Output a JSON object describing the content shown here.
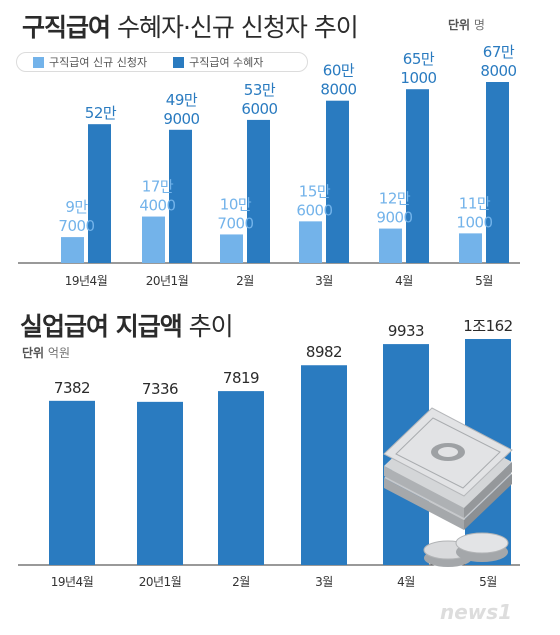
{
  "title1": {
    "bold": "구직급여",
    "rest": " 수혜자·신규 신청자 추이"
  },
  "unit1": {
    "label": "단위",
    "value": "명"
  },
  "legend": {
    "new": "구직급여 신규 신청자",
    "recipients": "구직급여 수혜자"
  },
  "title2": {
    "bold": "실업급여 지급액",
    "rest": " 추이"
  },
  "unit2": {
    "label": "단위",
    "value": "억원"
  },
  "watermark": "news1",
  "colors": {
    "light": "#73b3ea",
    "dark": "#2a7bc0",
    "label": "#2a7bc0",
    "axis": "#333333"
  },
  "chart_data": [
    {
      "type": "bar",
      "title": "구직급여 수혜자·신규 신청자 추이",
      "unit": "명",
      "categories": [
        "19년4월",
        "20년1월",
        "2월",
        "3월",
        "4월",
        "5월"
      ],
      "series": [
        {
          "name": "구직급여 신규 신청자",
          "values": [
            97000,
            174000,
            107000,
            156000,
            129000,
            111000
          ],
          "labels": [
            [
              "9만",
              "7000"
            ],
            [
              "17만",
              "4000"
            ],
            [
              "10만",
              "7000"
            ],
            [
              "15만",
              "6000"
            ],
            [
              "12만",
              "9000"
            ],
            [
              "11만",
              "1000"
            ]
          ]
        },
        {
          "name": "구직급여 수혜자",
          "values": [
            520000,
            499000,
            536000,
            608000,
            651000,
            678000
          ],
          "labels": [
            [
              "52만"
            ],
            [
              "49만",
              "9000"
            ],
            [
              "53만",
              "6000"
            ],
            [
              "60만",
              "8000"
            ],
            [
              "65만",
              "1000"
            ],
            [
              "67만",
              "8000"
            ]
          ]
        }
      ]
    },
    {
      "type": "bar",
      "title": "실업급여 지급액 추이",
      "unit": "억원",
      "categories": [
        "19년4월",
        "20년1월",
        "2월",
        "3월",
        "4월",
        "5월"
      ],
      "values": [
        7382,
        7336,
        7819,
        8982,
        9933,
        10162
      ],
      "labels": [
        "7382",
        "7336",
        "7819",
        "8982",
        "9933",
        "1조162"
      ]
    }
  ]
}
